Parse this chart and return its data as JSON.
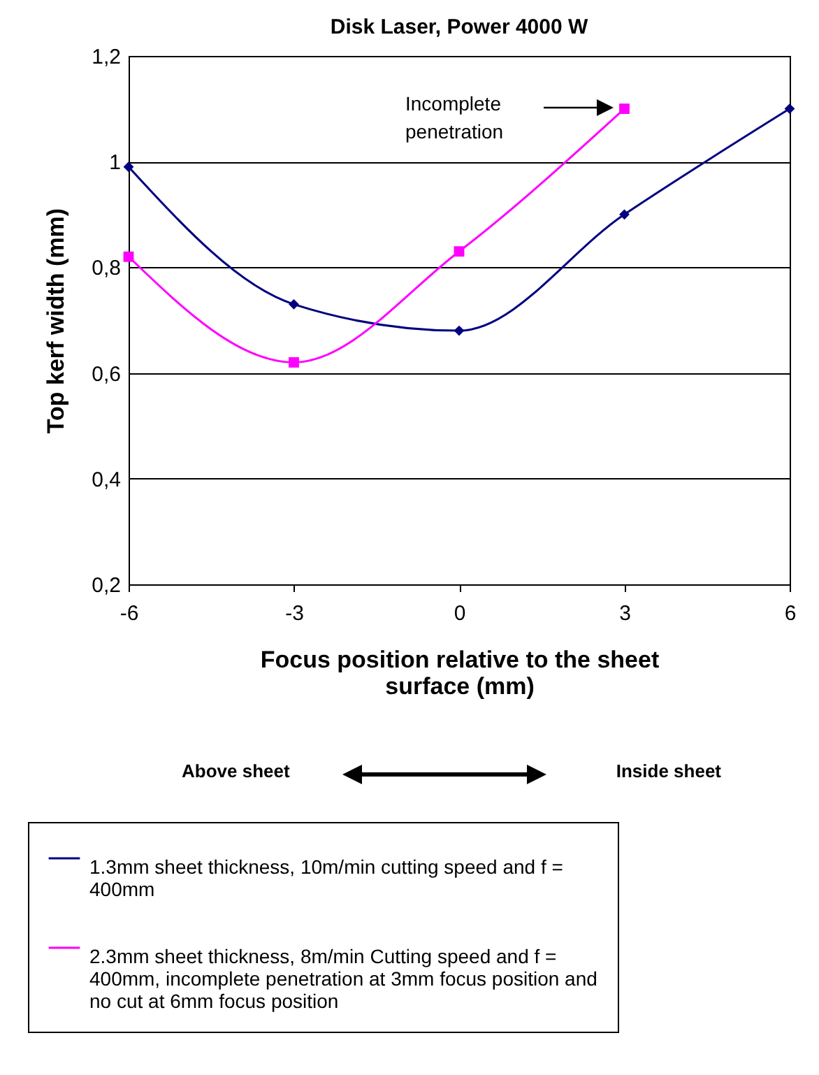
{
  "chart_data": {
    "type": "line",
    "title": "Disk Laser, Power 4000 W",
    "xlabel": "Focus position relative to the sheet surface (mm)",
    "ylabel": "Top kerf width (mm)",
    "x": [
      -6,
      -3,
      0,
      3,
      6
    ],
    "series": [
      {
        "name": "1.3mm sheet thickness, 10m/min cutting speed and f = 400mm",
        "color": "#000080",
        "marker": "diamond",
        "values": [
          0.99,
          0.73,
          0.68,
          0.9,
          1.1
        ]
      },
      {
        "name": "2.3mm sheet thickness, 8m/min Cutting speed and f = 400mm, incomplete penetration at 3mm focus position and no cut at 6mm focus position",
        "color": "#ff00ff",
        "marker": "square",
        "values": [
          0.82,
          0.62,
          0.83,
          1.1,
          null
        ]
      }
    ],
    "xlim": [
      -6,
      6
    ],
    "xticks": [
      -6,
      -3,
      0,
      3,
      6
    ],
    "ylim": [
      0.2,
      1.2
    ],
    "yticks": [
      {
        "value": 0.2,
        "label": "0,2"
      },
      {
        "value": 0.4,
        "label": "0,4"
      },
      {
        "value": 0.6,
        "label": "0,6"
      },
      {
        "value": 0.8,
        "label": "0,8"
      },
      1,
      {
        "value": 1.2,
        "label": "1,2"
      }
    ],
    "grid": "y",
    "legend": "bottom",
    "line_style": "solid",
    "annotations": [
      "Incomplete penetration",
      "Above sheet",
      "Inside sheet"
    ]
  }
}
